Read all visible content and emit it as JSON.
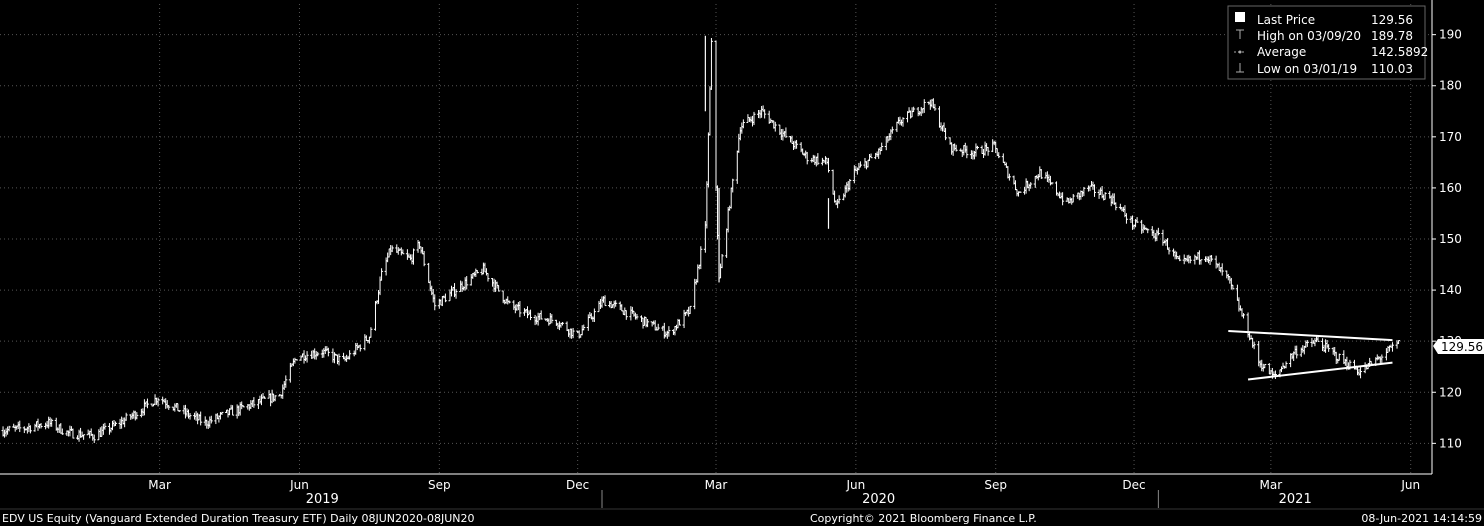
{
  "footer": {
    "left": "EDV US Equity (Vanguard Extended Duration Treasury ETF)  Daily 08JUN2020-08JUN20",
    "center": "Copyright© 2021 Bloomberg Finance L.P.",
    "right": "08-Jun-2021 14:14:59"
  },
  "legend": [
    {
      "label": "Last Price",
      "value": "129.56",
      "icon": "filled-square-icon"
    },
    {
      "label": "High on 03/09/20",
      "value": "189.78",
      "icon": "high-marker-icon"
    },
    {
      "label": "Average",
      "value": "142.5892",
      "icon": "average-line-icon"
    },
    {
      "label": "Low on 03/01/19",
      "value": "110.03",
      "icon": "low-marker-icon"
    }
  ],
  "last_price_tag": "129.56",
  "colors": {
    "background": "#000000",
    "bars": "#ffffff",
    "grid": "#555555",
    "tag_bg": "#ffffff",
    "tag_text": "#000000"
  },
  "chart_data": {
    "type": "ohlc-bar",
    "y_axis": {
      "position": "right",
      "ticks": [
        110,
        120,
        130,
        140,
        150,
        160,
        170,
        180,
        190
      ],
      "ylim": [
        104,
        196
      ]
    },
    "x_axis": {
      "month_ticks": [
        "Mar",
        "Jun",
        "Sep",
        "Dec",
        "Mar",
        "Jun",
        "Sep",
        "Dec",
        "Mar",
        "Jun"
      ],
      "year_labels": [
        "2019",
        "2020",
        "2021"
      ],
      "range": [
        "2018-12-01",
        "2021-06-30"
      ]
    },
    "grid": true,
    "legend_placement": "top-right",
    "series": [
      {
        "dates": [
          "2018-12-03",
          "2018-12-17",
          "2019-01-02",
          "2019-01-15",
          "2019-02-01",
          "2019-02-15",
          "2019-03-01",
          "2019-03-15",
          "2019-04-01",
          "2019-04-15",
          "2019-05-01",
          "2019-05-15",
          "2019-06-03",
          "2019-06-14",
          "2019-07-01",
          "2019-07-15",
          "2019-08-01",
          "2019-08-09",
          "2019-08-15",
          "2019-08-28",
          "2019-09-03",
          "2019-09-13",
          "2019-10-01",
          "2019-10-15",
          "2019-11-01",
          "2019-11-15",
          "2019-12-02",
          "2019-12-16",
          "2020-01-02",
          "2020-01-15",
          "2020-02-03",
          "2020-02-14",
          "2020-02-28",
          "2020-03-09",
          "2020-03-13",
          "2020-03-18",
          "2020-04-01",
          "2020-04-15",
          "2020-05-01",
          "2020-05-15",
          "2020-05-28",
          "2020-06-03",
          "2020-06-15",
          "2020-07-01",
          "2020-07-15",
          "2020-08-04",
          "2020-08-17",
          "2020-09-01",
          "2020-09-15",
          "2020-10-01",
          "2020-10-15",
          "2020-11-02",
          "2020-11-16",
          "2020-12-01",
          "2020-12-15",
          "2021-01-04",
          "2021-01-15",
          "2021-02-01",
          "2021-02-16",
          "2021-03-01",
          "2021-03-08",
          "2021-03-18",
          "2021-04-01",
          "2021-04-15",
          "2021-05-03",
          "2021-05-14",
          "2021-06-01",
          "2021-06-08"
        ],
        "values": [
          112.5,
          113,
          114,
          112,
          111.5,
          113.5,
          116,
          119,
          116,
          114,
          116,
          117.5,
          119.5,
          127,
          128,
          126,
          131,
          143,
          148,
          146,
          149,
          137,
          141,
          144,
          137,
          135,
          134,
          131,
          138,
          136,
          133,
          131.5,
          136,
          152,
          188,
          142,
          172,
          175,
          170,
          166,
          165,
          156,
          163,
          167,
          173,
          177,
          168,
          167,
          168,
          159,
          163,
          157,
          160,
          158,
          153,
          150,
          145,
          147,
          142,
          132,
          126,
          123,
          128,
          130,
          126,
          124,
          128,
          129.56
        ]
      }
    ],
    "trendlines": [
      {
        "from": [
          "2021-02-16",
          132
        ],
        "to": [
          "2021-06-04",
          130.2
        ]
      },
      {
        "from": [
          "2021-03-01",
          122.5
        ],
        "to": [
          "2021-06-04",
          125.8
        ]
      }
    ]
  }
}
